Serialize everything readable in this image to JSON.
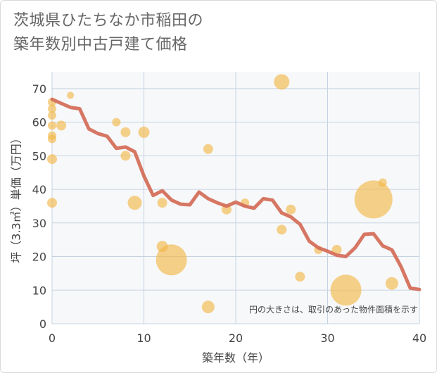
{
  "title": {
    "line1": "茨城県ひたちなか市稲田の",
    "line2": "築年数別中古戸建て価格"
  },
  "colors": {
    "line": "#d4705c",
    "bubble": "#f2b84b",
    "grid": "#c5d3e0",
    "background": "#f7f8fa"
  },
  "chart_data": {
    "type": "scatter",
    "xlabel": "築年数（年）",
    "ylabel": "坪（3.3㎡）単価（万円）",
    "xlim": [
      0,
      40
    ],
    "ylim": [
      0,
      75
    ],
    "xticks": [
      "0",
      "10",
      "20",
      "30",
      "40"
    ],
    "yticks": [
      "0",
      "10",
      "20",
      "30",
      "40",
      "50",
      "60",
      "70"
    ],
    "grid": true,
    "annotation": "円の大きさは、取引のあった物件面積を示す",
    "bubbles": [
      {
        "x": 0,
        "y": 66,
        "r": 6
      },
      {
        "x": 0,
        "y": 64,
        "r": 6
      },
      {
        "x": 0,
        "y": 62,
        "r": 6
      },
      {
        "x": 0,
        "y": 59,
        "r": 6
      },
      {
        "x": 0,
        "y": 56,
        "r": 6
      },
      {
        "x": 0,
        "y": 55,
        "r": 6
      },
      {
        "x": 0,
        "y": 49,
        "r": 7
      },
      {
        "x": 0,
        "y": 36,
        "r": 7
      },
      {
        "x": 1,
        "y": 59,
        "r": 7
      },
      {
        "x": 2,
        "y": 68,
        "r": 5
      },
      {
        "x": 7,
        "y": 60,
        "r": 6
      },
      {
        "x": 8,
        "y": 57,
        "r": 7
      },
      {
        "x": 8,
        "y": 50,
        "r": 7
      },
      {
        "x": 9,
        "y": 36,
        "r": 10
      },
      {
        "x": 10,
        "y": 57,
        "r": 8
      },
      {
        "x": 12,
        "y": 36,
        "r": 7
      },
      {
        "x": 12,
        "y": 23,
        "r": 8
      },
      {
        "x": 13,
        "y": 19,
        "r": 22
      },
      {
        "x": 17,
        "y": 52,
        "r": 7
      },
      {
        "x": 17,
        "y": 5,
        "r": 9
      },
      {
        "x": 19,
        "y": 34,
        "r": 7
      },
      {
        "x": 21,
        "y": 36,
        "r": 6
      },
      {
        "x": 25,
        "y": 72,
        "r": 11
      },
      {
        "x": 25,
        "y": 28,
        "r": 7
      },
      {
        "x": 26,
        "y": 34,
        "r": 7
      },
      {
        "x": 27,
        "y": 14,
        "r": 7
      },
      {
        "x": 29,
        "y": 22,
        "r": 6
      },
      {
        "x": 31,
        "y": 22,
        "r": 7
      },
      {
        "x": 32,
        "y": 10,
        "r": 22
      },
      {
        "x": 35,
        "y": 37,
        "r": 27
      },
      {
        "x": 36,
        "y": 42,
        "r": 6
      },
      {
        "x": 37,
        "y": 12,
        "r": 9
      }
    ],
    "line": {
      "x": [
        0,
        1,
        2,
        3,
        4,
        5,
        6,
        7,
        8,
        9,
        10,
        11,
        12,
        13,
        14,
        15,
        16,
        17,
        18,
        19,
        20,
        21,
        22,
        23,
        24,
        25,
        26,
        27,
        28,
        29,
        30,
        31,
        32,
        33,
        34,
        35,
        36,
        37,
        38,
        39,
        40
      ],
      "y": [
        66.8,
        65.6,
        64.4,
        64.0,
        58.0,
        56.6,
        55.8,
        52.2,
        52.6,
        51.2,
        44.0,
        38.2,
        39.6,
        36.8,
        35.6,
        35.4,
        39.2,
        37.2,
        36.0,
        35.0,
        36.2,
        35.0,
        34.4,
        37.2,
        36.8,
        33.0,
        31.8,
        29.6,
        24.6,
        22.6,
        21.6,
        20.4,
        20.0,
        22.6,
        26.6,
        26.8,
        23.2,
        22.0,
        17.0,
        10.6,
        10.2
      ]
    }
  }
}
